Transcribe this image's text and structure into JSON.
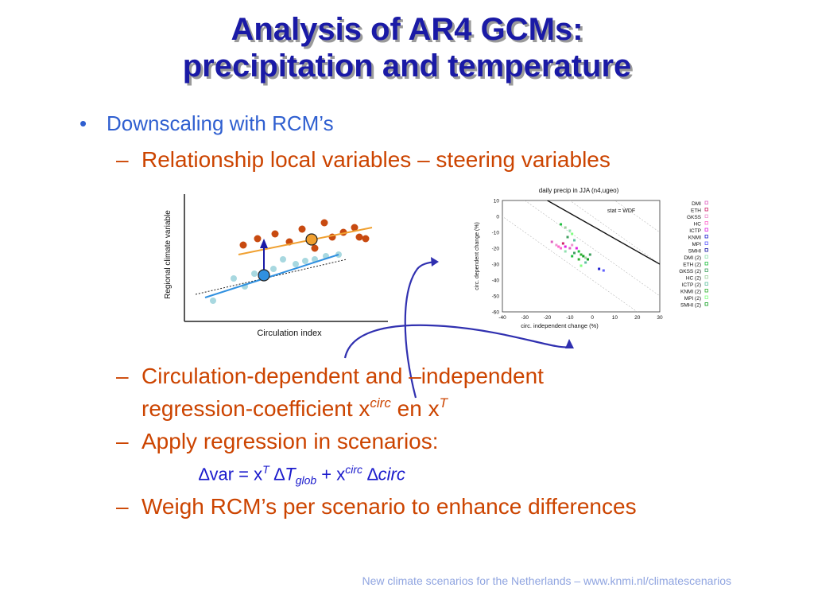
{
  "slide": {
    "title_line1": "Analysis of AR4 GCMs:",
    "title_line2": "precipitation and temperature",
    "bullet_main": "Downscaling with RCM’s",
    "sub1": "Relationship local variables – steering variables",
    "sub2_line1": "Circulation-dependent and –independent",
    "sub2_line2_a": "regression-coefficient x",
    "sub2_sup_circ": "circ",
    "sub2_line2_b": " en x",
    "sub2_sup_T": "T",
    "sub3": "Apply regression in scenarios:",
    "formula": {
      "delta": "∆",
      "var": "var = x",
      "sup_T": "T",
      "delta2": " ∆",
      "T": "T",
      "sub_glob": "glob",
      "plus": " + x",
      "sup_circ": "circ",
      "delta3": " ∆",
      "circ": "circ"
    },
    "sub4": "Weigh RCM’s per scenario to enhance differences",
    "dash": "–",
    "bullet_dot": "•",
    "footer": "New climate scenarios for the Netherlands – www.knmi.nl/climatescenarios"
  },
  "chart_data": [
    {
      "type": "scatter",
      "title": "",
      "xlabel": "Circulation index",
      "ylabel": "Regional climate variable",
      "note": "schematic, no numeric axes",
      "series": [
        {
          "name": "",
          "color": "#c84a10"
        },
        {
          "name": "",
          "color": "#a8d8e0"
        }
      ]
    },
    {
      "type": "scatter",
      "title": "daily precip in JJA (n4,ugeo)",
      "annotation": "stat = WDF",
      "xlabel": "circ. independent change (%)",
      "ylabel": "circ. dependent change (%)",
      "xlim": [
        -40,
        30
      ],
      "ylim": [
        -60,
        10
      ],
      "xticks": [
        "-40",
        "-30",
        "-20",
        "-10",
        "0",
        "10",
        "20",
        "30"
      ],
      "yticks": [
        "10",
        "0",
        "-10",
        "-20",
        "-30",
        "-40",
        "-50",
        "-60"
      ],
      "legend_position": "right",
      "legend": [
        {
          "label": "DMI",
          "color": "#e060c0"
        },
        {
          "label": "ETH",
          "color": "#d0206a"
        },
        {
          "label": "GKSS",
          "color": "#f090d0"
        },
        {
          "label": "HC",
          "color": "#ff66cc"
        },
        {
          "label": "ICTP",
          "color": "#e020e0"
        },
        {
          "label": "KNMI",
          "color": "#2020d0"
        },
        {
          "label": "MPI",
          "color": "#6060ff"
        },
        {
          "label": "SMHI",
          "color": "#1010a0"
        },
        {
          "label": "DMI (2)",
          "color": "#90e0b0"
        },
        {
          "label": "ETH (2)",
          "color": "#20c040"
        },
        {
          "label": "GKSS (2)",
          "color": "#40a060"
        },
        {
          "label": "HC (2)",
          "color": "#a0d0a0"
        },
        {
          "label": "ICTP (2)",
          "color": "#60c0a0"
        },
        {
          "label": "KNMI (2)",
          "color": "#30b030"
        },
        {
          "label": "MPI (2)",
          "color": "#80ff80"
        },
        {
          "label": "SMHI (2)",
          "color": "#10a020"
        }
      ]
    }
  ]
}
